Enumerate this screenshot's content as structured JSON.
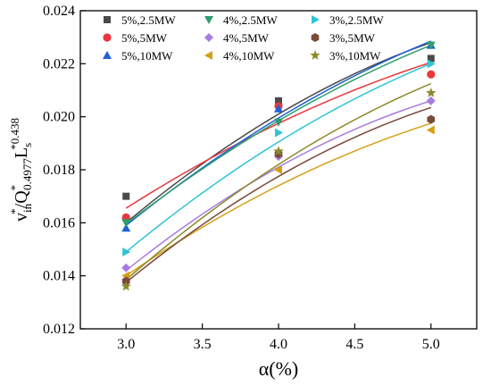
{
  "chart_data": {
    "type": "scatter",
    "title": "",
    "xlabel": "α(%)",
    "ylabel": {
      "base": "v",
      "base_sub": "in",
      "base_sup": "*",
      "mid": "/Q",
      "mid_sup": "*",
      "mid_sub": "0.4977",
      "tail": "L",
      "tail_sub": "s",
      "tail_sup": "*0.438"
    },
    "xlim": [
      2.7,
      5.3
    ],
    "ylim": [
      0.012,
      0.024
    ],
    "xticks": [
      "3.0",
      "3.5",
      "4.0",
      "4.5",
      "5.0"
    ],
    "xtick_values": [
      3.0,
      3.5,
      4.0,
      4.5,
      5.0
    ],
    "yticks": [
      "0.012",
      "0.014",
      "0.016",
      "0.018",
      "0.020",
      "0.022",
      "0.024"
    ],
    "ytick_values": [
      0.012,
      0.014,
      0.016,
      0.018,
      0.02,
      0.022,
      0.024
    ],
    "grid": false,
    "legend_position": "top-left",
    "x": [
      3.0,
      4.0,
      5.0
    ],
    "series": [
      {
        "name": "5%,2.5MW",
        "marker": "square",
        "color": "#4a4a4a",
        "values": [
          0.017,
          0.0206,
          0.0222
        ],
        "fit": [
          0.016,
          0.0201,
          0.0228
        ]
      },
      {
        "name": "5%,5MW",
        "marker": "circle",
        "color": "#e8383d",
        "values": [
          0.0162,
          0.0204,
          0.0216
        ],
        "fit": [
          0.01655,
          0.01975,
          0.02205
        ]
      },
      {
        "name": "5%,10MW",
        "marker": "triangle-up",
        "color": "#1f5fd8",
        "values": [
          0.0158,
          0.0203,
          0.0227
        ],
        "fit": [
          0.0159,
          0.01995,
          0.02285
        ]
      },
      {
        "name": "4%,2.5MW",
        "marker": "triangle-down",
        "color": "#2e9e6e",
        "values": [
          0.016,
          0.0198,
          0.0227
        ],
        "fit": [
          0.01595,
          0.01985,
          0.0227
        ]
      },
      {
        "name": "4%,5MW",
        "marker": "diamond",
        "color": "#a87be0",
        "values": [
          0.0143,
          0.0185,
          0.0206
        ],
        "fit": [
          0.0142,
          0.0181,
          0.0206
        ]
      },
      {
        "name": "4%,10MW",
        "marker": "triangle-left",
        "color": "#d4a017",
        "values": [
          0.014,
          0.018,
          0.0195
        ],
        "fit": [
          0.014,
          0.0174,
          0.01975
        ]
      },
      {
        "name": "3%,2.5MW",
        "marker": "triangle-right",
        "color": "#2ec4d6",
        "values": [
          0.0149,
          0.0194,
          0.022
        ],
        "fit": [
          0.0149,
          0.01905,
          0.022
        ]
      },
      {
        "name": "3%,5MW",
        "marker": "hexagon",
        "color": "#7a4a3a",
        "values": [
          0.0138,
          0.0186,
          0.0199
        ],
        "fit": [
          0.01375,
          0.01775,
          0.02035
        ]
      },
      {
        "name": "3%,10MW",
        "marker": "star",
        "color": "#8a8a2a",
        "values": [
          0.0136,
          0.0187,
          0.0209
        ],
        "fit": [
          0.01385,
          0.0182,
          0.02125
        ]
      }
    ]
  }
}
